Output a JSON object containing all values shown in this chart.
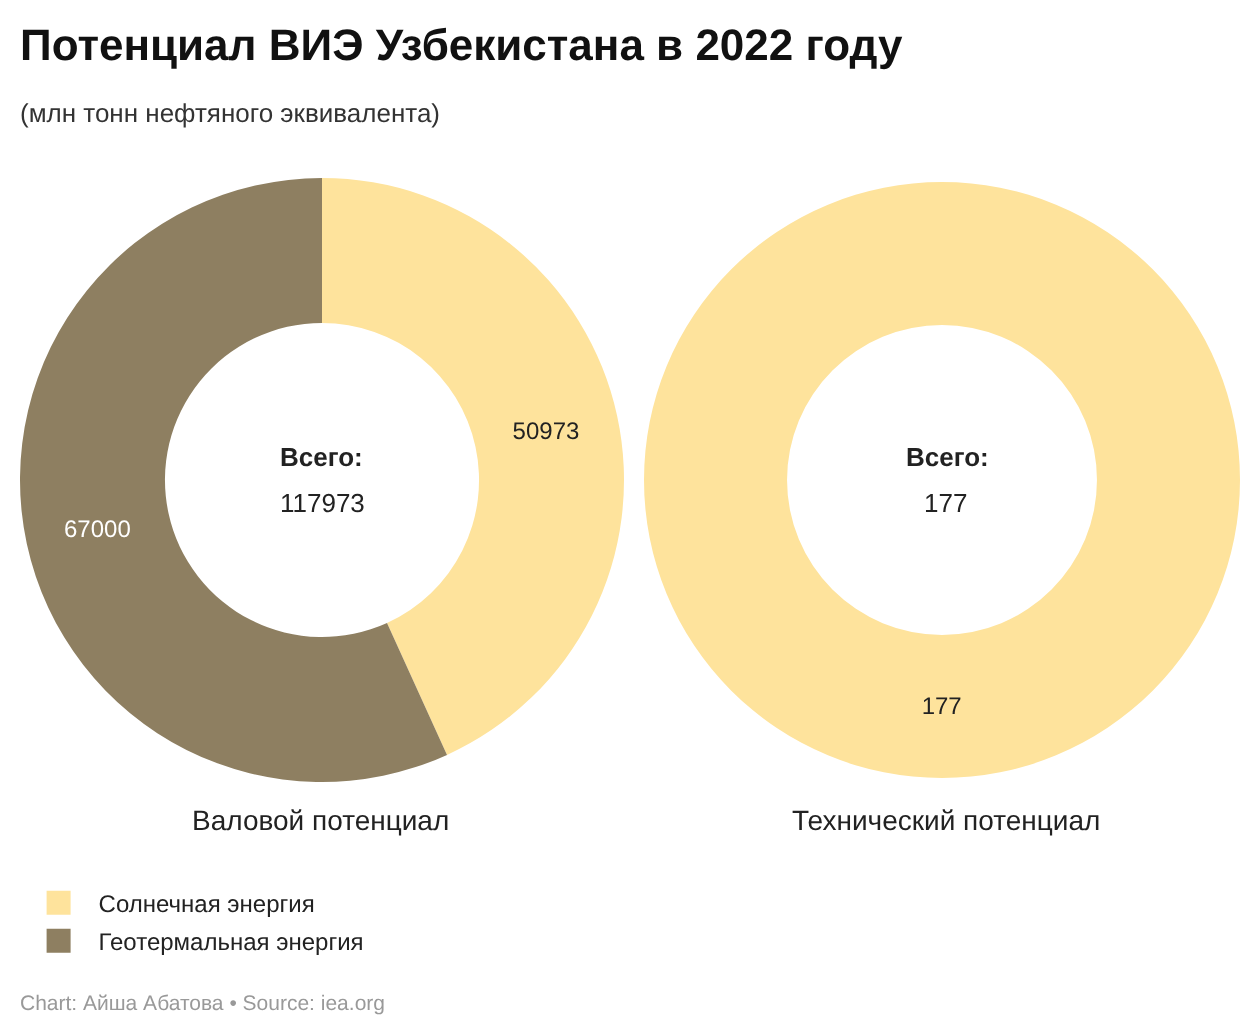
{
  "chart_data": {
    "type": "donut",
    "title": "Потенциал ВИЭ Узбекистана в 2022 году",
    "subtitle": "(млн тонн нефтяного эквивалента)",
    "categories": [
      "Солнечная энергия",
      "Геотермальная энергия"
    ],
    "colors": [
      "#fee39c",
      "#8e7f61"
    ],
    "series": [
      {
        "name": "Валовой потенциал",
        "values": [
          50973,
          67000
        ]
      },
      {
        "name": "Технический потенциал",
        "values": [
          177,
          null
        ]
      }
    ],
    "data_labels": true,
    "legend": "bottom left",
    "annotations": [
      "Всего:",
      "117973",
      "Всего:",
      "177",
      "Chart: Айша Абатова • Source: iea.org"
    ]
  }
}
